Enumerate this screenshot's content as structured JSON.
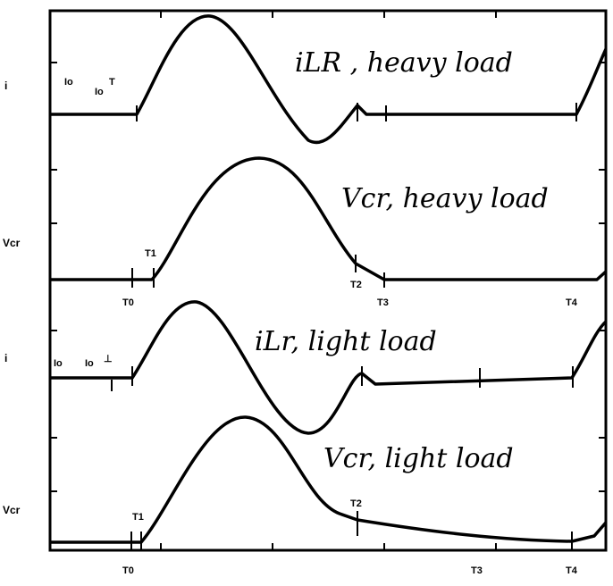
{
  "panels": [
    {
      "title": "iLR , heavy load",
      "side_label": "i",
      "markers": [
        "Io",
        "Io",
        "T"
      ]
    },
    {
      "title": "Vcr, heavy load",
      "side_label": "Vcr",
      "markers": [
        "T1",
        "T2"
      ],
      "time_labels": [
        "T0",
        "T3",
        "T4"
      ]
    },
    {
      "title": "iLr, light load",
      "side_label": "i",
      "markers": [
        "Io",
        "Io",
        "⊥"
      ]
    },
    {
      "title": "Vcr, light load",
      "side_label": "Vcr",
      "markers": [
        "T1",
        "T2"
      ],
      "time_labels": [
        "T0",
        "T3",
        "T4"
      ]
    }
  ]
}
